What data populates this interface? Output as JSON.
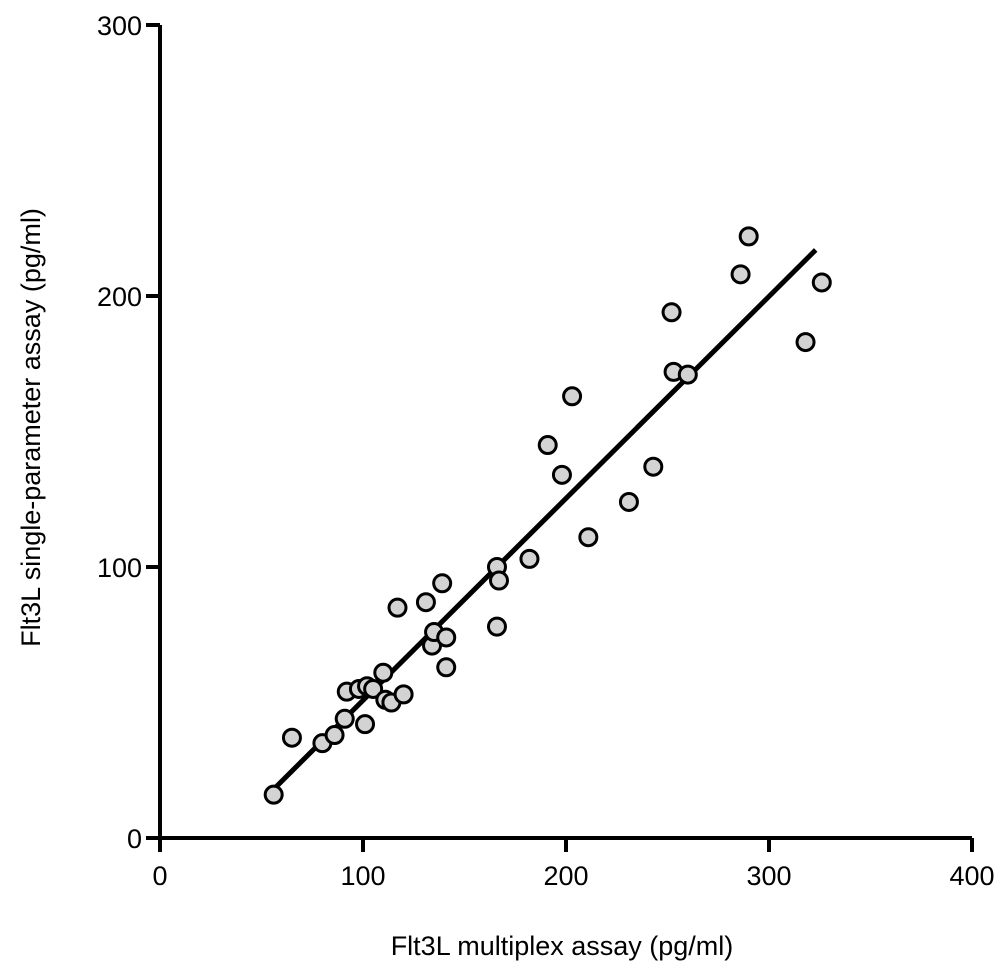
{
  "chart_data": {
    "type": "scatter",
    "title": "",
    "xlabel": "Flt3L multiplex assay (pg/ml)",
    "ylabel": "Flt3L single-parameter assay (pg/ml)",
    "xlim": [
      0,
      400
    ],
    "ylim": [
      0,
      300
    ],
    "xticks": [
      0,
      100,
      200,
      300,
      400
    ],
    "yticks": [
      0,
      100,
      200,
      300
    ],
    "grid": false,
    "point_fill": "#d3d3d3",
    "point_stroke": "#000000",
    "points": [
      {
        "x": 56,
        "y": 16
      },
      {
        "x": 65,
        "y": 37
      },
      {
        "x": 80,
        "y": 35
      },
      {
        "x": 86,
        "y": 38
      },
      {
        "x": 91,
        "y": 44
      },
      {
        "x": 92,
        "y": 54
      },
      {
        "x": 98,
        "y": 55
      },
      {
        "x": 101,
        "y": 42
      },
      {
        "x": 102,
        "y": 56
      },
      {
        "x": 105,
        "y": 55
      },
      {
        "x": 110,
        "y": 61
      },
      {
        "x": 111,
        "y": 51
      },
      {
        "x": 114,
        "y": 50
      },
      {
        "x": 117,
        "y": 85
      },
      {
        "x": 120,
        "y": 53
      },
      {
        "x": 131,
        "y": 87
      },
      {
        "x": 134,
        "y": 71
      },
      {
        "x": 135,
        "y": 76
      },
      {
        "x": 139,
        "y": 94
      },
      {
        "x": 141,
        "y": 74
      },
      {
        "x": 141,
        "y": 63
      },
      {
        "x": 166,
        "y": 100
      },
      {
        "x": 167,
        "y": 95
      },
      {
        "x": 166,
        "y": 78
      },
      {
        "x": 182,
        "y": 103
      },
      {
        "x": 191,
        "y": 145
      },
      {
        "x": 198,
        "y": 134
      },
      {
        "x": 203,
        "y": 163
      },
      {
        "x": 211,
        "y": 111
      },
      {
        "x": 231,
        "y": 124
      },
      {
        "x": 243,
        "y": 137
      },
      {
        "x": 252,
        "y": 194
      },
      {
        "x": 253,
        "y": 172
      },
      {
        "x": 260,
        "y": 171
      },
      {
        "x": 286,
        "y": 208
      },
      {
        "x": 290,
        "y": 222
      },
      {
        "x": 318,
        "y": 183
      },
      {
        "x": 326,
        "y": 205
      }
    ],
    "fit_line": {
      "x": [
        56,
        323
      ],
      "y": [
        18,
        217
      ]
    }
  }
}
